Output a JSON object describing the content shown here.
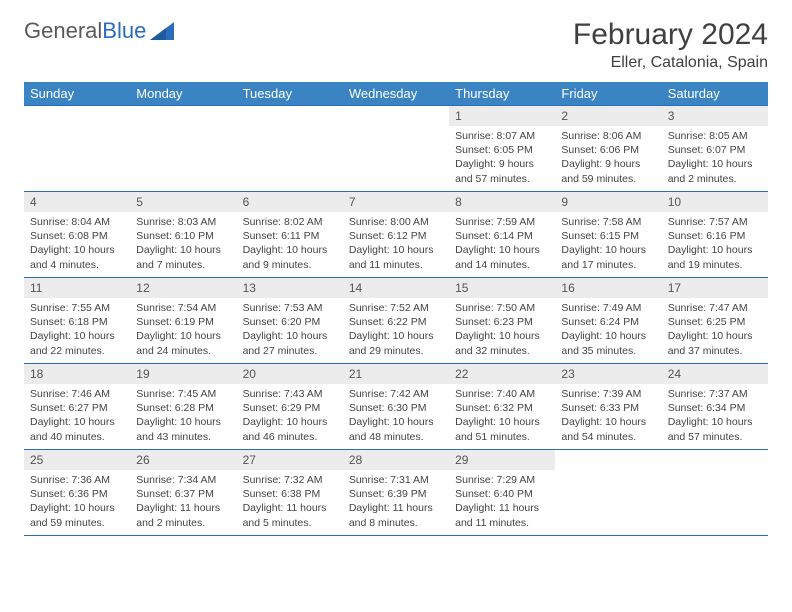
{
  "logo": {
    "text_general": "General",
    "text_blue": "Blue"
  },
  "header": {
    "month_title": "February 2024",
    "location": "Eller, Catalonia, Spain"
  },
  "colors": {
    "header_bg": "#3b84c4",
    "header_text": "#ffffff",
    "border": "#2a6db8",
    "daynum_bg": "#ececec",
    "body_text": "#444444",
    "logo_blue": "#2a6db8"
  },
  "day_names": [
    "Sunday",
    "Monday",
    "Tuesday",
    "Wednesday",
    "Thursday",
    "Friday",
    "Saturday"
  ],
  "weeks": [
    [
      null,
      null,
      null,
      null,
      {
        "n": "1",
        "sr": "8:07 AM",
        "ss": "6:05 PM",
        "dl": "9 hours and 57 minutes."
      },
      {
        "n": "2",
        "sr": "8:06 AM",
        "ss": "6:06 PM",
        "dl": "9 hours and 59 minutes."
      },
      {
        "n": "3",
        "sr": "8:05 AM",
        "ss": "6:07 PM",
        "dl": "10 hours and 2 minutes."
      }
    ],
    [
      {
        "n": "4",
        "sr": "8:04 AM",
        "ss": "6:08 PM",
        "dl": "10 hours and 4 minutes."
      },
      {
        "n": "5",
        "sr": "8:03 AM",
        "ss": "6:10 PM",
        "dl": "10 hours and 7 minutes."
      },
      {
        "n": "6",
        "sr": "8:02 AM",
        "ss": "6:11 PM",
        "dl": "10 hours and 9 minutes."
      },
      {
        "n": "7",
        "sr": "8:00 AM",
        "ss": "6:12 PM",
        "dl": "10 hours and 11 minutes."
      },
      {
        "n": "8",
        "sr": "7:59 AM",
        "ss": "6:14 PM",
        "dl": "10 hours and 14 minutes."
      },
      {
        "n": "9",
        "sr": "7:58 AM",
        "ss": "6:15 PM",
        "dl": "10 hours and 17 minutes."
      },
      {
        "n": "10",
        "sr": "7:57 AM",
        "ss": "6:16 PM",
        "dl": "10 hours and 19 minutes."
      }
    ],
    [
      {
        "n": "11",
        "sr": "7:55 AM",
        "ss": "6:18 PM",
        "dl": "10 hours and 22 minutes."
      },
      {
        "n": "12",
        "sr": "7:54 AM",
        "ss": "6:19 PM",
        "dl": "10 hours and 24 minutes."
      },
      {
        "n": "13",
        "sr": "7:53 AM",
        "ss": "6:20 PM",
        "dl": "10 hours and 27 minutes."
      },
      {
        "n": "14",
        "sr": "7:52 AM",
        "ss": "6:22 PM",
        "dl": "10 hours and 29 minutes."
      },
      {
        "n": "15",
        "sr": "7:50 AM",
        "ss": "6:23 PM",
        "dl": "10 hours and 32 minutes."
      },
      {
        "n": "16",
        "sr": "7:49 AM",
        "ss": "6:24 PM",
        "dl": "10 hours and 35 minutes."
      },
      {
        "n": "17",
        "sr": "7:47 AM",
        "ss": "6:25 PM",
        "dl": "10 hours and 37 minutes."
      }
    ],
    [
      {
        "n": "18",
        "sr": "7:46 AM",
        "ss": "6:27 PM",
        "dl": "10 hours and 40 minutes."
      },
      {
        "n": "19",
        "sr": "7:45 AM",
        "ss": "6:28 PM",
        "dl": "10 hours and 43 minutes."
      },
      {
        "n": "20",
        "sr": "7:43 AM",
        "ss": "6:29 PM",
        "dl": "10 hours and 46 minutes."
      },
      {
        "n": "21",
        "sr": "7:42 AM",
        "ss": "6:30 PM",
        "dl": "10 hours and 48 minutes."
      },
      {
        "n": "22",
        "sr": "7:40 AM",
        "ss": "6:32 PM",
        "dl": "10 hours and 51 minutes."
      },
      {
        "n": "23",
        "sr": "7:39 AM",
        "ss": "6:33 PM",
        "dl": "10 hours and 54 minutes."
      },
      {
        "n": "24",
        "sr": "7:37 AM",
        "ss": "6:34 PM",
        "dl": "10 hours and 57 minutes."
      }
    ],
    [
      {
        "n": "25",
        "sr": "7:36 AM",
        "ss": "6:36 PM",
        "dl": "10 hours and 59 minutes."
      },
      {
        "n": "26",
        "sr": "7:34 AM",
        "ss": "6:37 PM",
        "dl": "11 hours and 2 minutes."
      },
      {
        "n": "27",
        "sr": "7:32 AM",
        "ss": "6:38 PM",
        "dl": "11 hours and 5 minutes."
      },
      {
        "n": "28",
        "sr": "7:31 AM",
        "ss": "6:39 PM",
        "dl": "11 hours and 8 minutes."
      },
      {
        "n": "29",
        "sr": "7:29 AM",
        "ss": "6:40 PM",
        "dl": "11 hours and 11 minutes."
      },
      null,
      null
    ]
  ]
}
